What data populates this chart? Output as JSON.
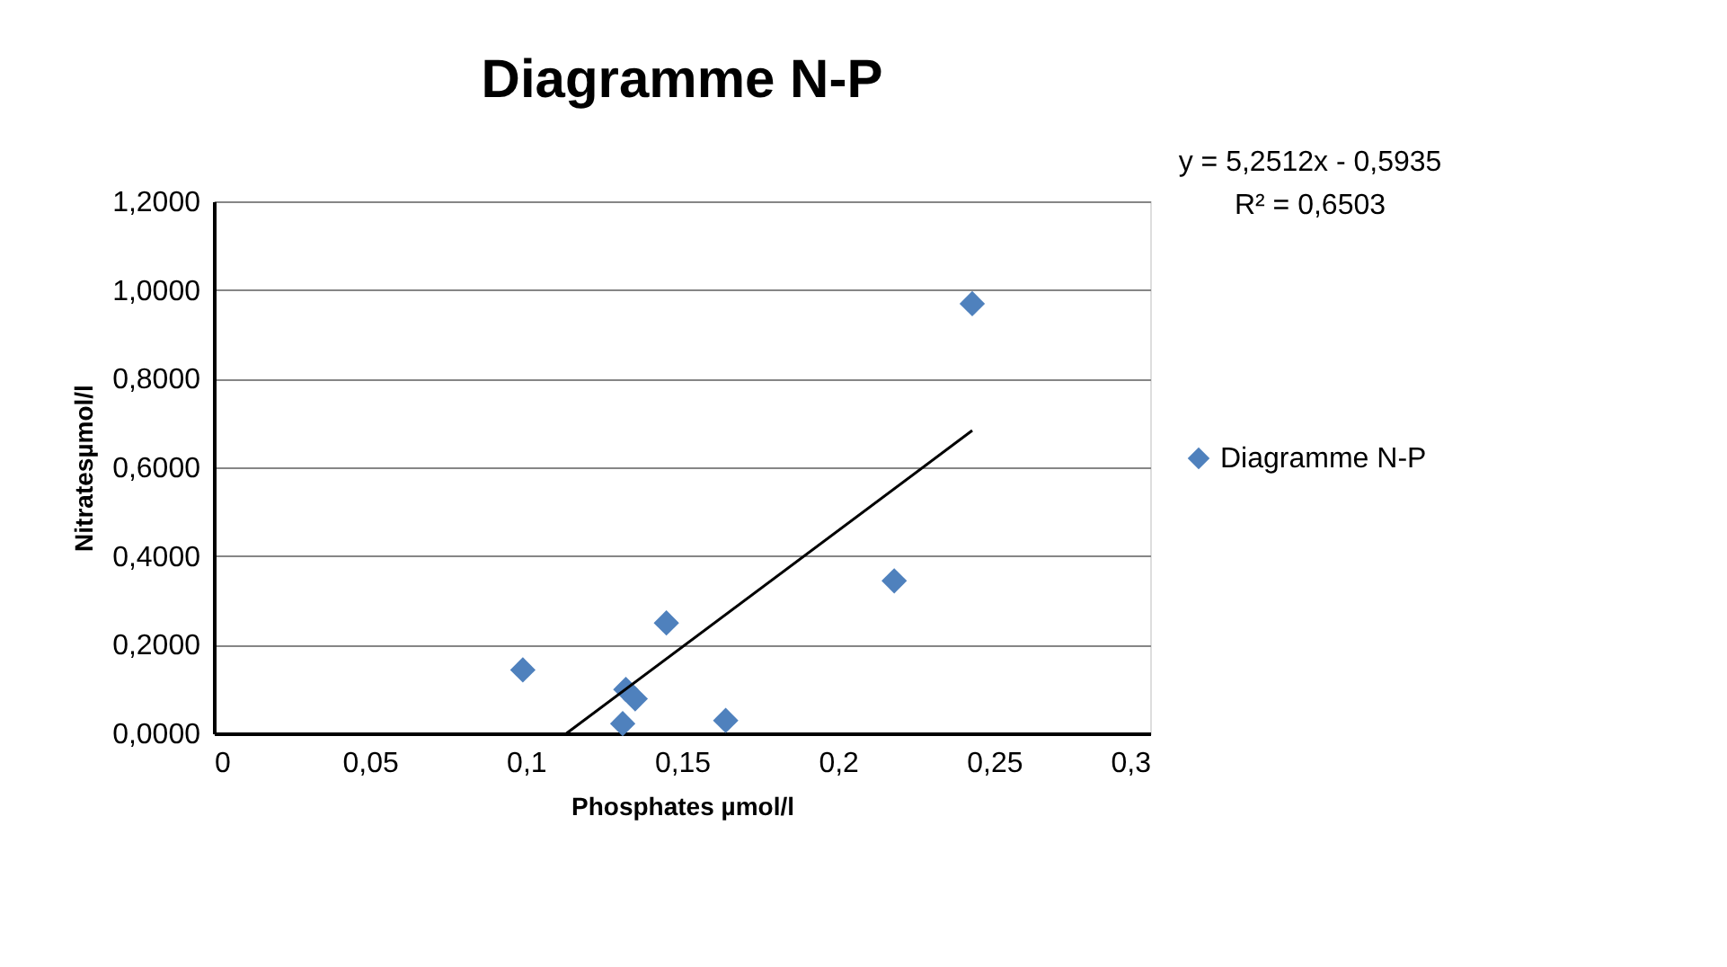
{
  "chart_data": {
    "type": "scatter",
    "title": "Diagramme N-P",
    "xlabel": "Phosphates µmol/l",
    "ylabel": "Nitratesµmol/l",
    "xlim": [
      0,
      0.3
    ],
    "ylim": [
      0,
      1.2
    ],
    "xticks": [
      0,
      {
        "value": 0.05,
        "label": "0,05"
      },
      {
        "value": 0.1,
        "label": "0,1"
      },
      {
        "value": 0.15,
        "label": "0,15"
      },
      {
        "value": 0.2,
        "label": "0,2"
      },
      {
        "value": 0.25,
        "label": "0,25"
      },
      {
        "value": 0.3,
        "label": "0,3"
      }
    ],
    "yticks": [
      {
        "value": 0,
        "label": "0,0000"
      },
      {
        "value": 0.2,
        "label": "0,2000"
      },
      {
        "value": 0.4,
        "label": "0,4000"
      },
      {
        "value": 0.6,
        "label": "0,6000"
      },
      {
        "value": 0.8,
        "label": "0,8000"
      },
      {
        "value": 1.0,
        "label": "1,0000"
      },
      {
        "value": 1.2,
        "label": "1,2000"
      }
    ],
    "grid": "y",
    "legend": "right",
    "marker": "diamond",
    "annotations": [
      "y = 5,2512x - 0,5935",
      "R² = 0,6503"
    ],
    "series": [
      {
        "name": "Diagramme N-P",
        "color": "#4f81bd",
        "x": [
          0.099,
          0.132,
          0.135,
          0.131,
          0.145,
          0.164,
          0.218,
          0.243
        ],
        "values": [
          0.143,
          0.099,
          0.078,
          0.022,
          0.249,
          0.029,
          0.344,
          0.969
        ]
      },
      {
        "type": "line",
        "color": "#000000",
        "x": [
          0.113,
          0.243
        ],
        "values": [
          0,
          0.683
        ],
        "line_style": "solid",
        "marker": "none"
      }
    ]
  }
}
